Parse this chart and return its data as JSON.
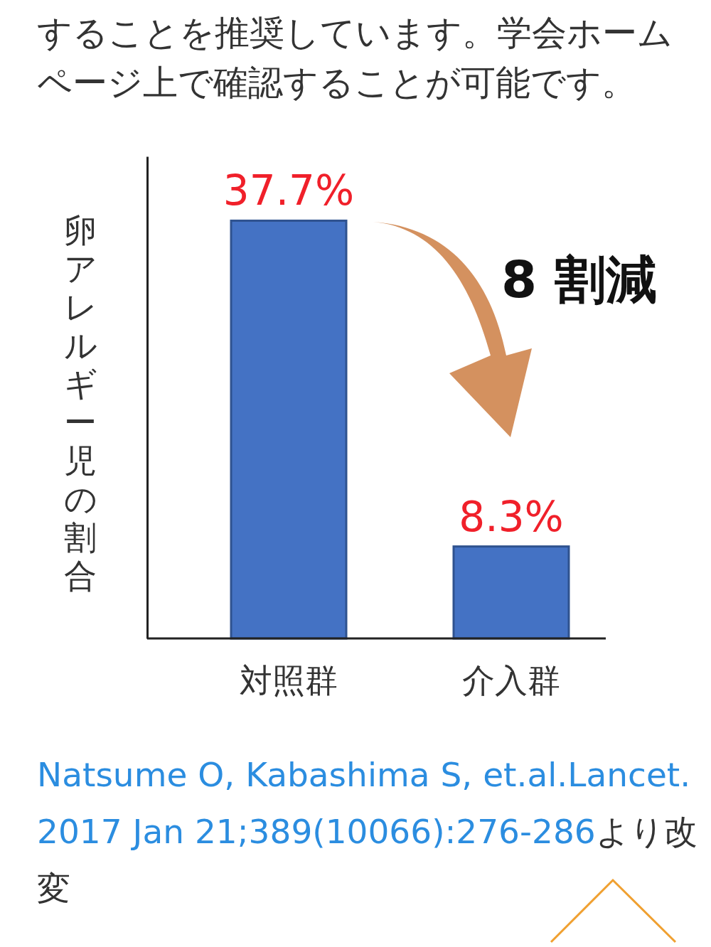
{
  "chart_data": {
    "type": "bar",
    "ylabel": "卵アレルギー児の割合",
    "categories": [
      "対照群",
      "介入群"
    ],
    "values": [
      37.7,
      8.3
    ],
    "value_labels": [
      "37.7%",
      "8.3%"
    ],
    "color": "#4472c4",
    "ylim": [
      0,
      43.5
    ],
    "tick_labels": "x",
    "grid": false,
    "annotations": [
      "することを推奨しています。学会ホームページ上で確認することが可能です。",
      "8 割減",
      "Natsume O, Kabashima S, et.al.Lancet. 2017 Jan 21;389(10066):276-286",
      "より改変"
    ]
  }
}
